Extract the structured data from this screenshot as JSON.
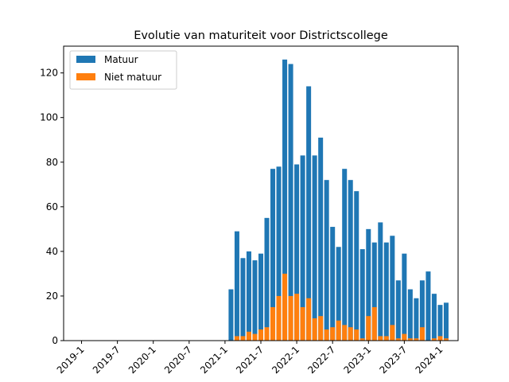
{
  "chart_data": {
    "type": "bar",
    "stacked": "overlay",
    "title": "Evolutie van maturiteit voor Districtscollege",
    "xlabel": "",
    "ylabel": "",
    "x_ticks": [
      "2019-1",
      "2019-7",
      "2020-1",
      "2020-7",
      "2021-1",
      "2021-7",
      "2022-1",
      "2022-7",
      "2023-1",
      "2023-7",
      "2024-1"
    ],
    "y_ticks": [
      0,
      20,
      40,
      60,
      80,
      100,
      120
    ],
    "ylim": [
      0,
      132
    ],
    "xlim": [
      "2018-10",
      "2024-4"
    ],
    "grid": false,
    "legend_position": "top-left",
    "categories": [
      "2021-2",
      "2021-3",
      "2021-4",
      "2021-5",
      "2021-6",
      "2021-7",
      "2021-8",
      "2021-9",
      "2021-10",
      "2021-11",
      "2021-12",
      "2022-1",
      "2022-2",
      "2022-3",
      "2022-4",
      "2022-5",
      "2022-6",
      "2022-7",
      "2022-8",
      "2022-9",
      "2022-10",
      "2022-11",
      "2022-12",
      "2023-1",
      "2023-2",
      "2023-3",
      "2023-4",
      "2023-5",
      "2023-6",
      "2023-7",
      "2023-8",
      "2023-9",
      "2023-10",
      "2023-11",
      "2023-12",
      "2024-1",
      "2024-2"
    ],
    "series": [
      {
        "name": "Matuur",
        "color": "#1f77b4",
        "values": [
          23,
          49,
          37,
          40,
          36,
          39,
          55,
          77,
          78,
          126,
          124,
          79,
          83,
          114,
          83,
          91,
          72,
          51,
          42,
          77,
          72,
          67,
          41,
          50,
          44,
          53,
          44,
          47,
          27,
          39,
          23,
          19,
          27,
          31,
          21,
          16,
          17
        ]
      },
      {
        "name": "Niet matuur",
        "color": "#ff7f0e",
        "values": [
          0,
          2,
          2,
          4,
          3,
          5,
          6,
          15,
          20,
          30,
          20,
          21,
          15,
          19,
          10,
          11,
          5,
          6,
          9,
          7,
          6,
          5,
          1,
          11,
          15,
          2,
          2,
          7,
          1,
          3,
          1,
          1,
          6,
          0,
          1,
          2,
          1
        ]
      }
    ]
  }
}
